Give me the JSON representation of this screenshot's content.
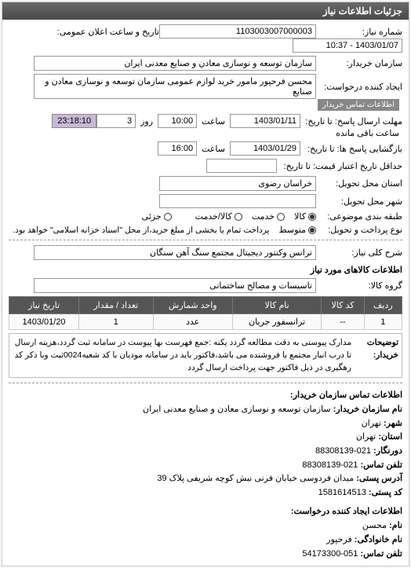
{
  "panel_title": "جزئیات اطلاعات نیاز",
  "form": {
    "req_no_label": "شماره نیاز:",
    "req_no": "1103003007000003",
    "announce_label": "تاریخ و ساعت اعلان عمومی:",
    "announce": "1403/01/07 - 10:37",
    "buyer_label": "سازمان خریدار:",
    "buyer": "سازمان توسعه و نوسازی معادن و صنایع معدنی ایران",
    "creator_label": "ایجاد کننده درخواست:",
    "creator": "محسن فرحپور مامور خرید لوازم عمومی سازمان توسعه و نوسازی معادن و صنایع",
    "info_btn": "اطلاعات تماس خریدار",
    "deadline_send_label": "مهلت ارسال پاسخ: تا تاریخ:",
    "deadline_send_date": "1403/01/11",
    "time_label": "ساعت",
    "deadline_send_time": "10:00",
    "day_label": "روز",
    "days_left": "3",
    "remaining_label": "ساعت باقی مانده",
    "remaining": "23:18:10",
    "open_label": "بازگشایی پاسخ ها: تا تاریخ:",
    "open_date": "1403/01/29",
    "open_time": "16:00",
    "valid_label": "حداقل تاریخ اعتبار قیمت: تا تاریخ:",
    "valid_date": "",
    "prov_label": "استان محل تحویل:",
    "prov": "خراسان رضوی",
    "city_label": "شهر محل تحویل:",
    "city": "",
    "cat_label": "طبقه بندی موضوعی:",
    "cat_opts": {
      "goods": "کالا",
      "service": "خدمت",
      "both": "کالا/خدمت"
    },
    "partial_label": "جزئی",
    "pay_label": "نوع پرداخت و تحویل:",
    "pay_opts": {
      "mid": "متوسط"
    },
    "pay_note": "پرداخت تمام یا بخشی از مبلغ خرید،از محل \"اسناد خزانه اسلامی\" خواهد بود.",
    "desc_label": "شرح کلی نیاز:",
    "desc": "ترانس وکنتور دیجیتال مجتمع سنگ آهن سنگان",
    "items_header": "اطلاعات کالاهای مورد نیاز",
    "group_label": "گروه کالا:",
    "group": "تاسیسات و مصالح ساختمانی"
  },
  "table": {
    "headers": [
      "ردیف",
      "کد کالا",
      "نام کالا",
      "واحد شمارش",
      "تعداد / مقدار",
      "تاریخ نیاز"
    ],
    "rows": [
      [
        "1",
        "--",
        "ترانسفور جریان",
        "عدد",
        "1",
        "1403/01/20"
      ]
    ]
  },
  "remarks": {
    "label": "توضیحات خریدار:",
    "text": "مدارک پیوستی به دقت مطالعه گردد یکنه :جمع فهرست بها پیوست در سامانه ثبت گردد،هزینه ارسال تا درب انبار مجتمع با فروشنده می باشد،فاکتور باید در سامانه مودیان با کد شعبه0024ثبت وبا ذکر کد رهگیری در ذیل فاکتور جهت پرداخت ارسال گردد"
  },
  "contact": {
    "header": "اطلاعات تماس سازمان خریدار:",
    "org_label": "نام سازمان خریدار:",
    "org": "سازمان توسعه و نوسازی معادن و صنایع معدنی ایران",
    "city_label": "شهر:",
    "city": "تهران",
    "prov_label": "استان:",
    "prov": "تهران",
    "fax_label": "دورنگار:",
    "fax": "021-88308139",
    "tel_label": "تلفن تماس:",
    "tel": "021-88308139",
    "addr_label": "آدرس پستی:",
    "addr": "میدان فردوسی خیابان فرنی نبش کوچه شریفی پلاک 39",
    "zip_label": "کد پستی:",
    "zip": "1581614513",
    "req_creator_header": "اطلاعات ایجاد کننده درخواست:",
    "name_label": "نام:",
    "name": "محسن",
    "lname_label": "نام خانوادگی:",
    "lname": "فرحپور",
    "ctel_label": "تلفن تماس:",
    "ctel": "051-54173300"
  }
}
